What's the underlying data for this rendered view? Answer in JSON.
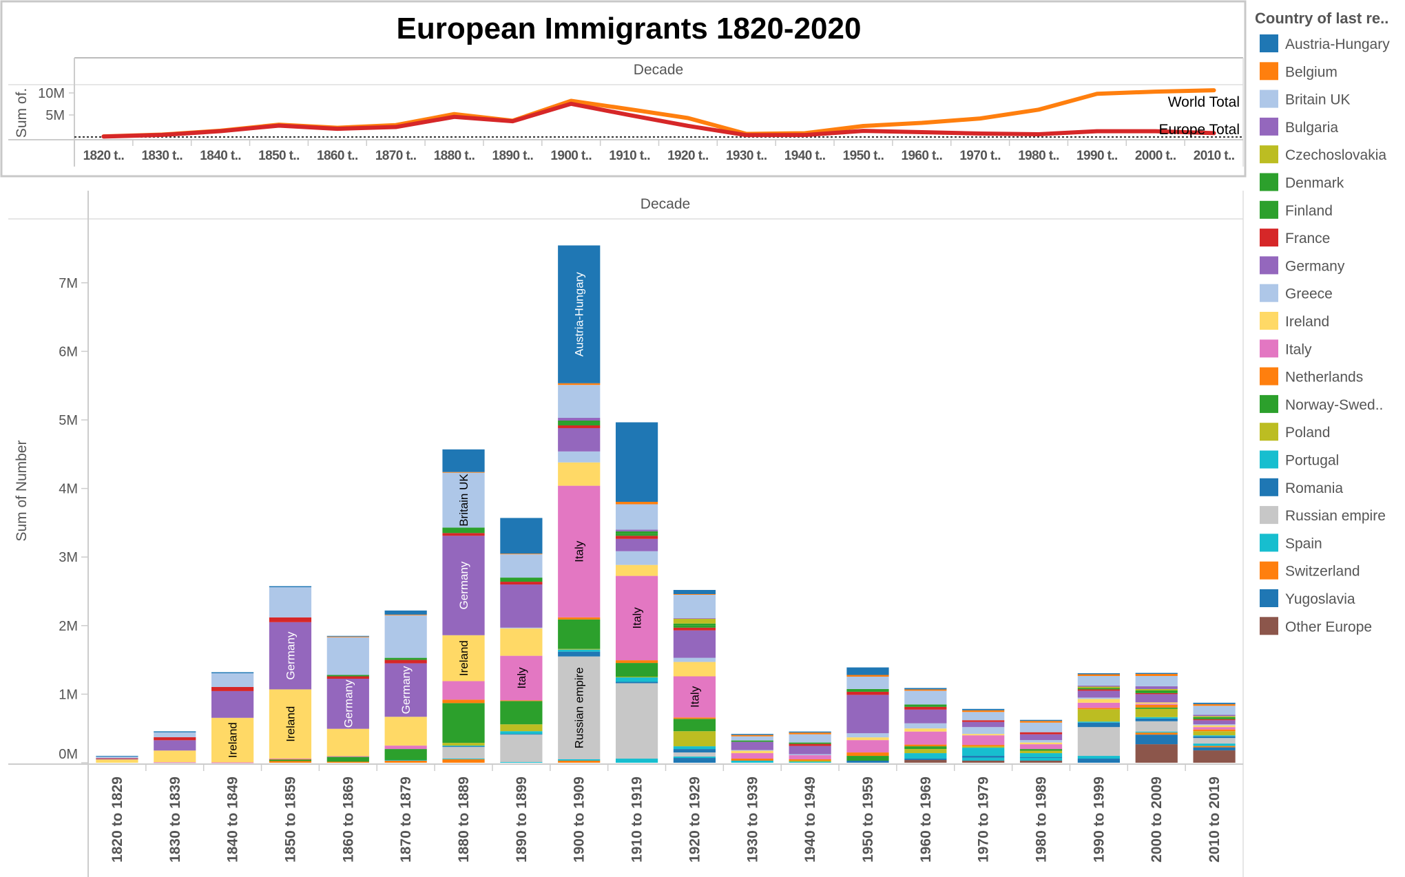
{
  "title": "European Immigrants 1820-2020",
  "chart_data": [
    {
      "type": "line",
      "header": "Decade",
      "ylabel": "Sum of.",
      "y_ticks": [
        "10M",
        "5M"
      ],
      "y_tick_values": [
        10,
        5
      ],
      "ylim": [
        0,
        11
      ],
      "categories": [
        "1820 t..",
        "1830 t..",
        "1840 t..",
        "1850 t..",
        "1860 t..",
        "1870 t..",
        "1880 t..",
        "1890 t..",
        "1900 t..",
        "1910 t..",
        "1920 t..",
        "1930 t..",
        "1940 t..",
        "1950 t..",
        "1960 t..",
        "1970 t..",
        "1980 t..",
        "1990 t..",
        "2000 t..",
        "2010 t.."
      ],
      "reference_line": 0,
      "series": [
        {
          "name": "World Total",
          "color": "#ff7f0e",
          "values": [
            0.13,
            0.54,
            1.43,
            2.8,
            2.1,
            2.7,
            5.2,
            3.7,
            8.2,
            6.3,
            4.3,
            0.7,
            0.86,
            2.5,
            3.2,
            4.2,
            6.2,
            9.8,
            10.3,
            10.6
          ]
        },
        {
          "name": "Europe Total",
          "color": "#d62728",
          "values": [
            0.1,
            0.46,
            1.32,
            2.58,
            1.86,
            2.26,
            4.57,
            3.57,
            7.53,
            4.97,
            2.52,
            0.42,
            0.455,
            1.39,
            1.09,
            0.785,
            0.625,
            1.305,
            1.31,
            0.875
          ]
        }
      ]
    },
    {
      "type": "bar",
      "stacked": true,
      "header": "Decade",
      "ylabel": "Sum of Number",
      "y_ticks": [
        "0M",
        "1M",
        "2M",
        "3M",
        "4M",
        "5M",
        "6M",
        "7M"
      ],
      "y_tick_values": [
        0,
        1,
        2,
        3,
        4,
        5,
        6,
        7
      ],
      "ylim": [
        0,
        7.9
      ],
      "legend_title": "Country of last re..",
      "legend_position": "right",
      "countries": [
        {
          "name": "Austria-Hungary",
          "color": "#1f77b4"
        },
        {
          "name": "Belgium",
          "color": "#ff7f0e"
        },
        {
          "name": "Britain UK",
          "color": "#aec7e8"
        },
        {
          "name": "Bulgaria",
          "color": "#9467bd"
        },
        {
          "name": "Czechoslovakia",
          "color": "#bcbd22"
        },
        {
          "name": "Denmark",
          "color": "#2ca02c"
        },
        {
          "name": "Finland",
          "color": "#2ca02c"
        },
        {
          "name": "France",
          "color": "#d62728"
        },
        {
          "name": "Germany",
          "color": "#9467bd"
        },
        {
          "name": "Greece",
          "color": "#aec7e8"
        },
        {
          "name": "Ireland",
          "color": "#ffd966"
        },
        {
          "name": "Italy",
          "color": "#e377c2"
        },
        {
          "name": "Netherlands",
          "color": "#ff7f0e"
        },
        {
          "name": "Norway-Swed..",
          "color": "#2ca02c"
        },
        {
          "name": "Poland",
          "color": "#bcbd22"
        },
        {
          "name": "Portugal",
          "color": "#17becf"
        },
        {
          "name": "Romania",
          "color": "#1f77b4"
        },
        {
          "name": "Russian empire",
          "color": "#c7c7c7"
        },
        {
          "name": "Spain",
          "color": "#17becf"
        },
        {
          "name": "Switzerland",
          "color": "#ff7f0e"
        },
        {
          "name": "Yugoslavia",
          "color": "#1f77b4"
        },
        {
          "name": "Other Europe",
          "color": "#8c564b"
        }
      ],
      "categories": [
        "1820 to 1829",
        "1830 to 1839",
        "1840 to 1849",
        "1850 to 1859",
        "1860 to 1869",
        "1870 to 1879",
        "1880 to 1889",
        "1890 to 1899",
        "1900 to 1909",
        "1910 to 1919",
        "1920 to 1929",
        "1930 to 1939",
        "1940 to 1949",
        "1950 to 1959",
        "1960 to 1969",
        "1970 to 1979",
        "1980 to 1989",
        "1990 to 1999",
        "2000 to 2009",
        "2010 to 2019"
      ],
      "stacks": [
        {
          "Ireland": 0.05,
          "Germany": 0.008,
          "France": 0.008,
          "Britain UK": 0.027,
          "Austria-Hungary": 0.007
        },
        {
          "Italy": 0.003,
          "Russian empire": 0.005,
          "Ireland": 0.17,
          "Germany": 0.15,
          "France": 0.045,
          "Britain UK": 0.07,
          "Austria-Hungary": 0.015
        },
        {
          "Italy": 0.005,
          "Ireland": 0.65,
          "Germany": 0.39,
          "France": 0.06,
          "Britain UK": 0.2,
          "Austria-Hungary": 0.015
        },
        {
          "Switzerland": 0.025,
          "Norway-Swed..": 0.02,
          "Netherlands": 0.01,
          "Italy": 0.005,
          "Ireland": 1.01,
          "Germany": 0.98,
          "France": 0.07,
          "Britain UK": 0.44,
          "Austria-Hungary": 0.015
        },
        {
          "Switzerland": 0.015,
          "Norway-Swed..": 0.07,
          "Italy": 0.01,
          "Ireland": 0.4,
          "Germany": 0.73,
          "France": 0.035,
          "Denmark": 0.02,
          "Britain UK": 0.55,
          "Belgium": 0.01,
          "Austria-Hungary": 0.01
        },
        {
          "Switzerland": 0.03,
          "Spain": 0.01,
          "Norway-Swed..": 0.16,
          "Italy": 0.05,
          "Ireland": 0.42,
          "Germany": 0.78,
          "France": 0.05,
          "Denmark": 0.03,
          "Britain UK": 0.62,
          "Belgium": 0.01,
          "Austria-Hungary": 0.06
        },
        {
          "Switzerland": 0.05,
          "Spain": 0.01,
          "Russian empire": 0.17,
          "Romania": 0.01,
          "Portugal": 0.01,
          "Poland": 0.04,
          "Norway-Swed..": 0.58,
          "Netherlands": 0.05,
          "Italy": 0.27,
          "Ireland": 0.67,
          "Germany": 1.45,
          "France": 0.04,
          "Denmark": 0.08,
          "Britain UK": 0.8,
          "Belgium": 0.01,
          "Austria-Hungary": 0.33
        },
        {
          "Spain": 0.01,
          "Russian empire": 0.4,
          "Romania": 0.01,
          "Portugal": 0.04,
          "Poland": 0.1,
          "Norway-Swed..": 0.34,
          "Netherlands": 0.01,
          "Italy": 0.65,
          "Ireland": 0.4,
          "Greece": 0.01,
          "Germany": 0.63,
          "France": 0.04,
          "Denmark": 0.06,
          "Britain UK": 0.34,
          "Belgium": 0.01,
          "Austria-Hungary": 0.52
        },
        {
          "Switzerland": 0.03,
          "Spain": 0.02,
          "Russian empire": 1.5,
          "Romania": 0.07,
          "Portugal": 0.03,
          "Poland": 0.01,
          "Norway-Swed..": 0.43,
          "Netherlands": 0.03,
          "Italy": 1.92,
          "Ireland": 0.34,
          "Greece": 0.16,
          "Germany": 0.34,
          "France": 0.04,
          "Finland": 0.035,
          "Denmark": 0.035,
          "Bulgaria": 0.04,
          "Britain UK": 0.48,
          "Belgium": 0.025,
          "Austria-Hungary": 2.01
        },
        {
          "Spain": 0.06,
          "Russian empire": 1.1,
          "Romania": 0.02,
          "Portugal": 0.065,
          "Poland": 0.01,
          "Norway-Swed..": 0.2,
          "Netherlands": 0.04,
          "Italy": 1.23,
          "Ireland": 0.16,
          "Greece": 0.2,
          "Germany": 0.18,
          "France": 0.045,
          "Finland": 0.03,
          "Denmark": 0.035,
          "Bulgaria": 0.025,
          "Britain UK": 0.37,
          "Belgium": 0.035,
          "Austria-Hungary": 1.16
        },
        {
          "Yugoslavia": 0.07,
          "Spain": 0.02,
          "Russian empire": 0.06,
          "Romania": 0.05,
          "Portugal": 0.04,
          "Poland": 0.22,
          "Norway-Swed..": 0.18,
          "Netherlands": 0.02,
          "Italy": 0.6,
          "Ireland": 0.21,
          "Greece": 0.06,
          "Germany": 0.4,
          "France": 0.04,
          "Finland": 0.03,
          "Denmark": 0.03,
          "Czechoslovakia": 0.07,
          "Bulgaria": 0.01,
          "Britain UK": 0.34,
          "Belgium": 0.01,
          "Austria-Hungary": 0.06
        },
        {
          "Portugal": 0.03,
          "Netherlands": 0.03,
          "Italy": 0.08,
          "Ireland": 0.035,
          "Greece": 0.01,
          "Germany": 0.12,
          "Denmark": 0.02,
          "Britain UK": 0.06,
          "Belgium": 0.02,
          "Austria-Hungary": 0.015
        },
        {
          "Portugal": 0.015,
          "Poland": 0.015,
          "Netherlands": 0.02,
          "Italy": 0.06,
          "Greece": 0.015,
          "Germany": 0.12,
          "France": 0.03,
          "Denmark": 0.02,
          "Britain UK": 0.12,
          "Belgium": 0.025,
          "Austria-Hungary": 0.015
        },
        {
          "Yugoslavia": 0.03,
          "Norway-Swed..": 0.07,
          "Netherlands": 0.05,
          "Italy": 0.18,
          "Ireland": 0.04,
          "Greece": 0.06,
          "Germany": 0.56,
          "France": 0.045,
          "Denmark": 0.04,
          "Britain UK": 0.18,
          "Belgium": 0.025,
          "Austria-Hungary": 0.11
        },
        {
          "Other Europe": 0.04,
          "Romania": 0.02,
          "Portugal": 0.08,
          "Poland": 0.06,
          "Norway-Swed..": 0.04,
          "Netherlands": 0.025,
          "Italy": 0.19,
          "Ireland": 0.045,
          "Greece": 0.075,
          "Germany": 0.2,
          "France": 0.04,
          "Denmark": 0.035,
          "Britain UK": 0.2,
          "Belgium": 0.02,
          "Austria-Hungary": 0.02
        },
        {
          "Other Europe": 0.03,
          "Spain": 0.045,
          "Romania": 0.025,
          "Portugal": 0.12,
          "Poland": 0.02,
          "Netherlands": 0.02,
          "Italy": 0.14,
          "Ireland": 0.02,
          "Greece": 0.1,
          "Germany": 0.075,
          "France": 0.025,
          "Britain UK": 0.12,
          "Belgium": 0.025,
          "Austria-Hungary": 0.02
        },
        {
          "Other Europe": 0.03,
          "Spain": 0.04,
          "Romania": 0.01,
          "Portugal": 0.06,
          "Poland": 0.035,
          "Norway-Swed..": 0.025,
          "Italy": 0.07,
          "Ireland": 0.025,
          "Greece": 0.035,
          "Germany": 0.085,
          "France": 0.03,
          "Britain UK": 0.14,
          "Belgium": 0.025,
          "Austria-Hungary": 0.015
        },
        {
          "Yugoslavia": 0.06,
          "Spain": 0.04,
          "Russian empire": 0.42,
          "Romania": 0.065,
          "Portugal": 0.015,
          "Poland": 0.18,
          "Netherlands": 0.02,
          "Italy": 0.075,
          "Ireland": 0.055,
          "Greece": 0.02,
          "Germany": 0.1,
          "France": 0.02,
          "Denmark": 0.02,
          "Czechoslovakia": 0.02,
          "Bulgaria": 0.015,
          "Britain UK": 0.14,
          "Belgium": 0.025,
          "Austria-Hungary": 0.015
        },
        {
          "Other Europe": 0.27,
          "Yugoslavia": 0.14,
          "Switzerland": 0.03,
          "Spain": 0.015,
          "Russian empire": 0.15,
          "Romania": 0.04,
          "Portugal": 0.02,
          "Poland": 0.12,
          "Norway-Swed..": 0.02,
          "Netherlands": 0.04,
          "Italy": 0.015,
          "Ireland": 0.02,
          "Germany": 0.12,
          "France": 0.015,
          "Denmark": 0.04,
          "Czechoslovakia": 0.02,
          "Bulgaria": 0.04,
          "Britain UK": 0.15,
          "Belgium": 0.03,
          "Austria-Hungary": 0.015
        },
        {
          "Other Europe": 0.18,
          "Yugoslavia": 0.045,
          "Switzerland": 0.02,
          "Spain": 0.035,
          "Russian empire": 0.08,
          "Romania": 0.025,
          "Portugal": 0.015,
          "Poland": 0.06,
          "Netherlands": 0.025,
          "Italy": 0.035,
          "Ireland": 0.025,
          "Greece": 0.015,
          "Germany": 0.06,
          "France": 0.015,
          "Denmark": 0.03,
          "Czechoslovakia": 0.015,
          "Bulgaria": 0.02,
          "Britain UK": 0.13,
          "Belgium": 0.025,
          "Austria-Hungary": 0.02
        }
      ],
      "segment_labels": [
        {
          "decade": 2,
          "country": "Ireland",
          "text": "Ireland"
        },
        {
          "decade": 3,
          "country": "Ireland",
          "text": "Ireland"
        },
        {
          "decade": 3,
          "country": "Germany",
          "text": "Germany"
        },
        {
          "decade": 4,
          "country": "Germany",
          "text": "Germany"
        },
        {
          "decade": 5,
          "country": "Germany",
          "text": "Germany"
        },
        {
          "decade": 6,
          "country": "Ireland",
          "text": "Ireland"
        },
        {
          "decade": 6,
          "country": "Germany",
          "text": "Germany"
        },
        {
          "decade": 6,
          "country": "Britain UK",
          "text": "Britain UK"
        },
        {
          "decade": 7,
          "country": "Italy",
          "text": "Italy"
        },
        {
          "decade": 8,
          "country": "Russian empire",
          "text": "Russian empire"
        },
        {
          "decade": 8,
          "country": "Italy",
          "text": "Italy"
        },
        {
          "decade": 8,
          "country": "Austria-Hungary",
          "text": "Austria-Hungary"
        },
        {
          "decade": 9,
          "country": "Italy",
          "text": "Italy"
        },
        {
          "decade": 10,
          "country": "Italy",
          "text": "Italy"
        }
      ]
    }
  ]
}
